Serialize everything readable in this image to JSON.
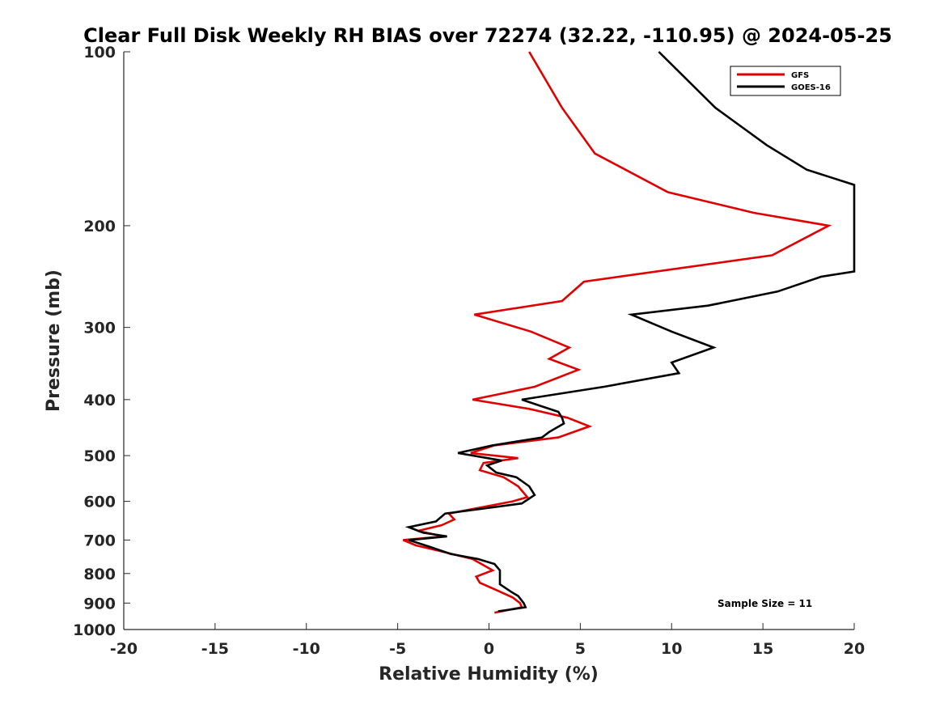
{
  "chart_data": {
    "type": "line",
    "title": "Clear Full Disk Weekly RH BIAS over 72274 (32.22, -110.95) @ 2024-05-25",
    "xlabel": "Relative Humidity (%)",
    "ylabel": "Pressure (mb)",
    "xlim": [
      -20,
      20
    ],
    "ylim": [
      100,
      1000
    ],
    "y_scale": "log",
    "y_reversed": true,
    "x_ticks": [
      "-20",
      "-15",
      "-10",
      "-5",
      "0",
      "5",
      "10",
      "15",
      "20"
    ],
    "y_ticks": [
      "100",
      "200",
      "300",
      "400",
      "500",
      "600",
      "700",
      "800",
      "900",
      "1000"
    ],
    "grid": false,
    "legend_position": "top-right",
    "annotation": "Sample Size = 11",
    "series": [
      {
        "name": "GFS",
        "color": "#e00000",
        "points": [
          [
            2.2,
            100
          ],
          [
            4.0,
            125
          ],
          [
            5.8,
            150
          ],
          [
            9.8,
            175
          ],
          [
            14.5,
            190
          ],
          [
            18.6,
            200
          ],
          [
            15.5,
            225
          ],
          [
            5.2,
            250
          ],
          [
            4.0,
            270
          ],
          [
            -0.8,
            285
          ],
          [
            2.3,
            305
          ],
          [
            4.4,
            325
          ],
          [
            3.3,
            340
          ],
          [
            4.9,
            355
          ],
          [
            2.5,
            380
          ],
          [
            -0.9,
            400
          ],
          [
            2.2,
            415
          ],
          [
            4.3,
            430
          ],
          [
            5.5,
            445
          ],
          [
            3.8,
            465
          ],
          [
            0.3,
            480
          ],
          [
            -1.0,
            495
          ],
          [
            1.6,
            505
          ],
          [
            -0.3,
            515
          ],
          [
            -0.5,
            530
          ],
          [
            0.8,
            545
          ],
          [
            1.6,
            565
          ],
          [
            2.1,
            590
          ],
          [
            1.3,
            600
          ],
          [
            -2.2,
            630
          ],
          [
            -1.9,
            645
          ],
          [
            -2.6,
            660
          ],
          [
            -3.9,
            675
          ],
          [
            -2.5,
            690
          ],
          [
            -4.7,
            700
          ],
          [
            -4.0,
            715
          ],
          [
            -2.8,
            730
          ],
          [
            -0.9,
            755
          ],
          [
            0.2,
            790
          ],
          [
            -0.7,
            810
          ],
          [
            -0.5,
            830
          ],
          [
            0.6,
            860
          ],
          [
            1.3,
            880
          ],
          [
            1.7,
            900
          ],
          [
            1.8,
            915
          ],
          [
            0.3,
            935
          ]
        ]
      },
      {
        "name": "GOES-16",
        "color": "#000000",
        "points": [
          [
            9.3,
            100
          ],
          [
            12.4,
            125
          ],
          [
            15.2,
            145
          ],
          [
            17.4,
            160
          ],
          [
            20.0,
            170
          ],
          [
            20.0,
            240
          ],
          [
            18.2,
            245
          ],
          [
            15.8,
            260
          ],
          [
            12.0,
            275
          ],
          [
            7.8,
            285
          ],
          [
            10.0,
            305
          ],
          [
            12.3,
            325
          ],
          [
            10.0,
            345
          ],
          [
            10.4,
            360
          ],
          [
            6.3,
            380
          ],
          [
            1.8,
            400
          ],
          [
            2.8,
            410
          ],
          [
            3.8,
            420
          ],
          [
            4.0,
            430
          ],
          [
            4.1,
            440
          ],
          [
            3.3,
            455
          ],
          [
            2.9,
            465
          ],
          [
            0.2,
            480
          ],
          [
            -1.7,
            495
          ],
          [
            0.7,
            510
          ],
          [
            -0.1,
            520
          ],
          [
            0.4,
            535
          ],
          [
            1.5,
            545
          ],
          [
            2.2,
            565
          ],
          [
            2.5,
            585
          ],
          [
            1.8,
            605
          ],
          [
            -2.4,
            630
          ],
          [
            -2.9,
            650
          ],
          [
            -4.4,
            665
          ],
          [
            -3.6,
            680
          ],
          [
            -2.3,
            690
          ],
          [
            -4.4,
            700
          ],
          [
            -3.2,
            720
          ],
          [
            -2.1,
            740
          ],
          [
            -0.6,
            755
          ],
          [
            0.3,
            770
          ],
          [
            0.6,
            790
          ],
          [
            0.6,
            815
          ],
          [
            0.6,
            835
          ],
          [
            1.2,
            860
          ],
          [
            1.6,
            875
          ],
          [
            1.9,
            900
          ],
          [
            2.0,
            915
          ],
          [
            0.5,
            930
          ]
        ]
      }
    ]
  }
}
